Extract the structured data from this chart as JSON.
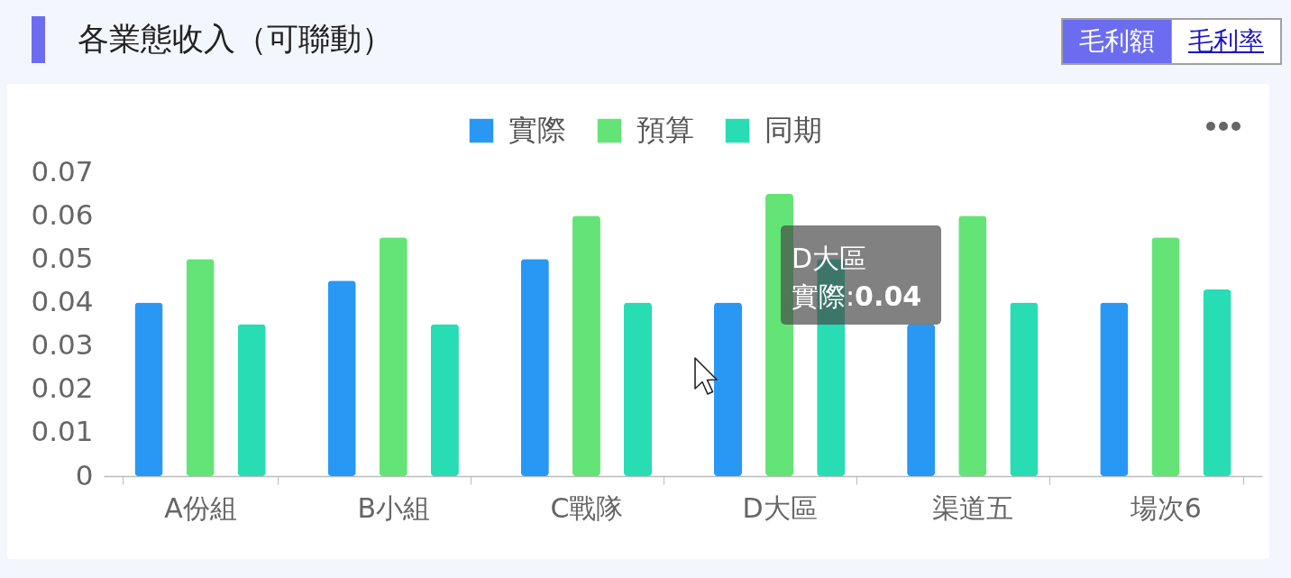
{
  "chart_data": {
    "type": "bar",
    "title": "各業態收入（可聯動）",
    "categories": [
      "A份組",
      "B小組",
      "C戰隊",
      "D大區",
      "渠道五",
      "場次6"
    ],
    "series": [
      {
        "name": "實際",
        "color": "#2898f4",
        "values": [
          0.04,
          0.045,
          0.05,
          0.04,
          0.035,
          0.04
        ]
      },
      {
        "name": "預算",
        "color": "#64e476",
        "values": [
          0.05,
          0.055,
          0.06,
          0.065,
          0.06,
          0.055
        ]
      },
      {
        "name": "同期",
        "color": "#28dcb4",
        "values": [
          0.035,
          0.035,
          0.04,
          0.05,
          0.04,
          0.043
        ]
      }
    ],
    "ylim": [
      0,
      0.07
    ],
    "yticks": [
      0,
      0.01,
      0.02,
      0.03,
      0.04,
      0.05,
      0.06,
      0.07
    ],
    "legend": "top",
    "annotations": [
      "毛利額",
      "毛利率",
      "D大區",
      "實際:0.04"
    ]
  }
}
